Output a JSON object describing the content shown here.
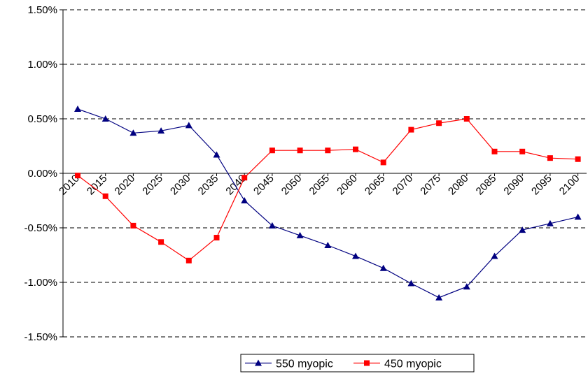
{
  "chart_data": {
    "type": "line",
    "y_axis": {
      "min": -1.5,
      "max": 1.5,
      "ticks": [
        1.5,
        1.0,
        0.5,
        0.0,
        -0.5,
        -1.0,
        -1.5
      ],
      "tick_labels": [
        "1.50%",
        "1.00%",
        "0.50%",
        "0.00%",
        "-0.50%",
        "-1.00%",
        "-1.50%"
      ],
      "grid": "dashed"
    },
    "categories": [
      "2010",
      "2015",
      "2020",
      "2025",
      "2030",
      "2035",
      "2040",
      "2045",
      "2050",
      "2055",
      "2060",
      "2065",
      "2070",
      "2075",
      "2080",
      "2085",
      "2090",
      "2095",
      "2100"
    ],
    "series": [
      {
        "name": "550 myopic",
        "color": "#000080",
        "marker": "triangle",
        "values": [
          0.59,
          0.5,
          0.37,
          0.39,
          0.44,
          0.17,
          -0.25,
          -0.48,
          -0.57,
          -0.66,
          -0.76,
          -0.87,
          -1.01,
          -1.14,
          -1.04,
          -0.76,
          -0.52,
          -0.46,
          -0.4
        ]
      },
      {
        "name": "450 myopic",
        "color": "#ff0000",
        "marker": "square",
        "values": [
          -0.02,
          -0.21,
          -0.48,
          -0.63,
          -0.8,
          -0.59,
          -0.04,
          0.21,
          0.21,
          0.21,
          0.22,
          0.1,
          0.4,
          0.46,
          0.5,
          0.2,
          0.2,
          0.14,
          0.13
        ]
      }
    ],
    "legend": {
      "position": "bottom"
    }
  }
}
